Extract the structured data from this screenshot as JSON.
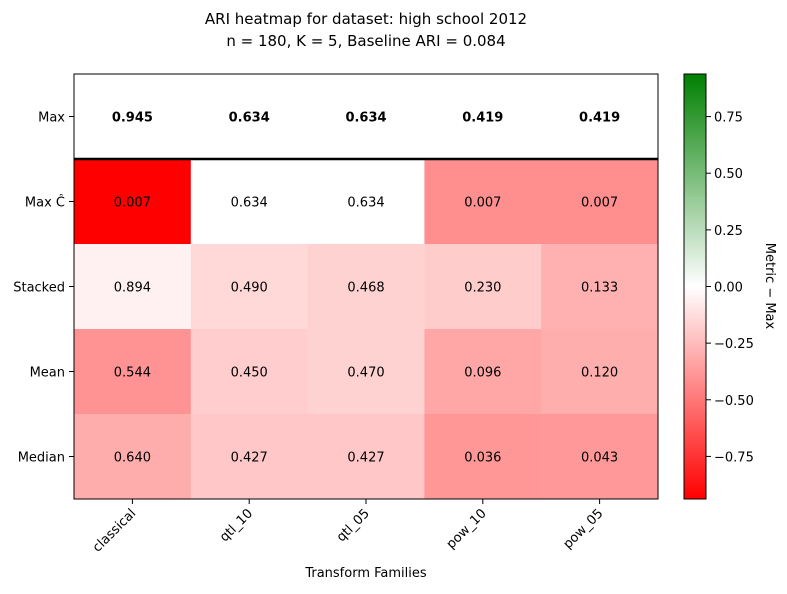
{
  "chart_data": {
    "type": "heatmap",
    "title": "ARI heatmap for dataset: high school 2012",
    "subtitle": "n = 180, K = 5, Baseline ARI = 0.084",
    "xlabel": "Transform Families",
    "ylabel": "",
    "columns": [
      "classical",
      "qtl_10",
      "qtl_05",
      "pow_10",
      "pow_05"
    ],
    "rows": [
      "Max",
      "Max Ĉ",
      "Stacked",
      "Mean",
      "Median"
    ],
    "values": [
      [
        0.945,
        0.634,
        0.634,
        0.419,
        0.419
      ],
      [
        0.007,
        0.634,
        0.634,
        0.007,
        0.007
      ],
      [
        0.894,
        0.49,
        0.468,
        0.23,
        0.133
      ],
      [
        0.544,
        0.45,
        0.47,
        0.096,
        0.12
      ],
      [
        0.64,
        0.427,
        0.427,
        0.036,
        0.043
      ]
    ],
    "labels": [
      [
        "0.945",
        "0.634",
        "0.634",
        "0.419",
        "0.419"
      ],
      [
        "0.007",
        "0.634",
        "0.634",
        "0.007",
        "0.007"
      ],
      [
        "0.894",
        "0.490",
        "0.468",
        "0.230",
        "0.133"
      ],
      [
        "0.544",
        "0.450",
        "0.470",
        "0.096",
        "0.120"
      ],
      [
        "0.640",
        "0.427",
        "0.427",
        "0.036",
        "0.043"
      ]
    ],
    "bold_row": "Max",
    "separator_after_row": "Max",
    "color_metric": "Metric − Max",
    "colorbar": {
      "label": "Metric − Max",
      "range": [
        -0.938,
        0.938
      ],
      "ticks": [
        0.75,
        0.5,
        0.25,
        0.0,
        -0.25,
        -0.5,
        -0.75
      ],
      "tick_labels": [
        "0.75",
        "0.50",
        "0.25",
        "0.00",
        "−0.25",
        "−0.50",
        "−0.75"
      ],
      "colors": {
        "low": "#ff0000",
        "mid": "#ffffff",
        "high": "#008000"
      }
    }
  }
}
